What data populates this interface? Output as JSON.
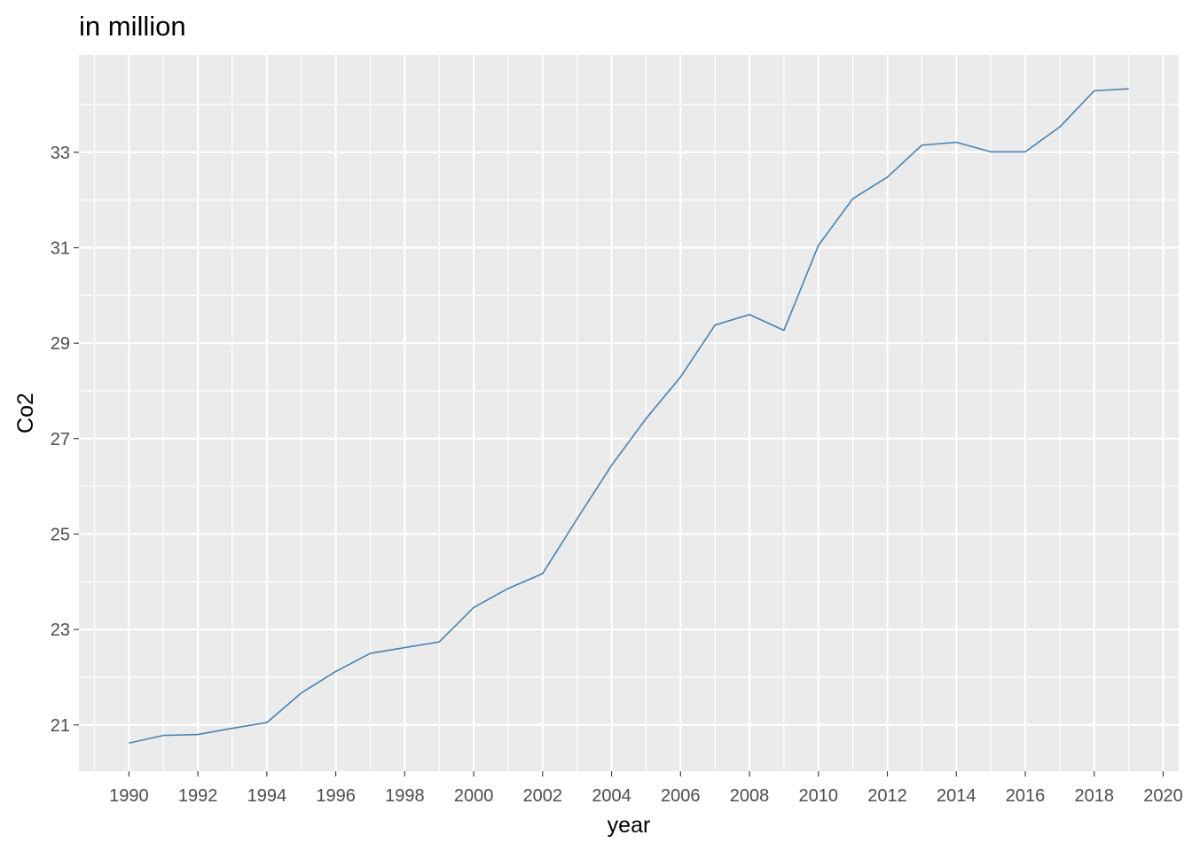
{
  "chart_data": {
    "type": "line",
    "title": "in million",
    "xlabel": "year",
    "ylabel": "Co2",
    "x": [
      1990,
      1991,
      1992,
      1993,
      1994,
      1995,
      1996,
      1997,
      1998,
      1999,
      2000,
      2001,
      2002,
      2003,
      2004,
      2005,
      2006,
      2007,
      2008,
      2009,
      2010,
      2011,
      2012,
      2013,
      2014,
      2015,
      2016,
      2017,
      2018,
      2019
    ],
    "series": [
      {
        "values": [
          20.62,
          20.78,
          20.8,
          20.93,
          21.05,
          21.67,
          22.12,
          22.5,
          22.62,
          22.74,
          23.46,
          23.86,
          24.17,
          25.32,
          26.44,
          27.42,
          28.29,
          29.38,
          29.6,
          29.27,
          31.05,
          32.03,
          32.48,
          33.15,
          33.21,
          33.01,
          33.01,
          33.53,
          34.29,
          34.33
        ],
        "color": "#4682b4"
      }
    ],
    "x_ticks": [
      "1990",
      "1992",
      "1994",
      "1996",
      "1998",
      "2000",
      "2002",
      "2004",
      "2006",
      "2008",
      "2010",
      "2012",
      "2014",
      "2016",
      "2018",
      "2020"
    ],
    "y_ticks": [
      "21",
      "23",
      "25",
      "27",
      "29",
      "31",
      "33"
    ],
    "xlim": [
      1988.55,
      2020.45
    ],
    "ylim": [
      20.03,
      35.04
    ],
    "grid": true,
    "panel_background": "#ebebeb",
    "gridline_color": "#ffffff"
  }
}
